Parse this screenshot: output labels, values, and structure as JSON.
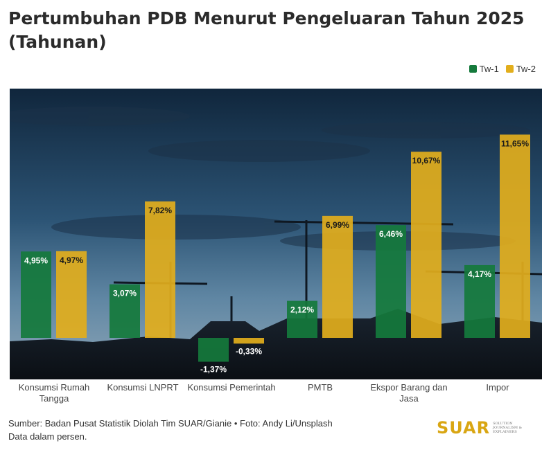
{
  "title": "Pertumbuhan PDB Menurut Pengeluaran Tahun 2025 (Tahunan)",
  "legend": {
    "tw1": "Tw-1",
    "tw2": "Tw-2"
  },
  "colors": {
    "tw1": "#157a3c",
    "tw2": "#e2ae1c"
  },
  "footer": {
    "source": "Sumber: Badan Pusat Statistik Diolah Tim SUAR/Gianie • Foto: Andy Li/Unsplash",
    "note": "Data dalam persen."
  },
  "brand": {
    "name": "SUAR",
    "tagline": "SOLUTION JOURNALISM & EXPLAINERS"
  },
  "chart_data": {
    "type": "bar",
    "categories": [
      "Konsumsi Rumah Tangga",
      "Konsumsi LNPRT",
      "Konsumsi Pemerintah",
      "PMTB",
      "Ekspor Barang dan Jasa",
      "Impor"
    ],
    "series": [
      {
        "name": "Tw-1",
        "values": [
          4.95,
          3.07,
          -1.37,
          2.12,
          6.46,
          4.17
        ],
        "labels": [
          "4,95%",
          "3,07%",
          "-1,37%",
          "2,12%",
          "6,46%",
          "4,17%"
        ]
      },
      {
        "name": "Tw-2",
        "values": [
          4.97,
          7.82,
          -0.33,
          6.99,
          10.67,
          11.65
        ],
        "labels": [
          "4,97%",
          "7,82%",
          "-0,33%",
          "6,99%",
          "10,67%",
          "11,65%"
        ]
      }
    ],
    "ylim": [
      -2,
      12
    ],
    "legend_position": "top-right",
    "grid": false
  }
}
